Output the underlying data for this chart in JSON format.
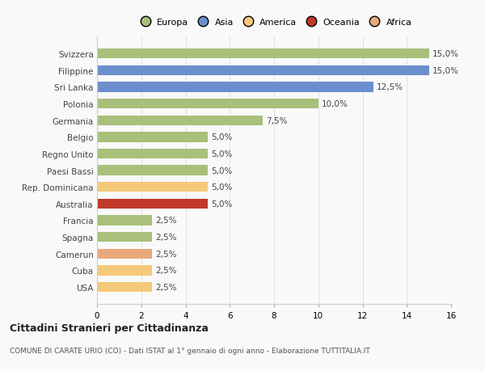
{
  "categories": [
    "USA",
    "Cuba",
    "Camerun",
    "Spagna",
    "Francia",
    "Australia",
    "Rep. Dominicana",
    "Paesi Bassi",
    "Regno Unito",
    "Belgio",
    "Germania",
    "Polonia",
    "Sri Lanka",
    "Filippine",
    "Svizzera"
  ],
  "values": [
    2.5,
    2.5,
    2.5,
    2.5,
    2.5,
    5.0,
    5.0,
    5.0,
    5.0,
    5.0,
    7.5,
    10.0,
    12.5,
    15.0,
    15.0
  ],
  "colors": [
    "#f5c97a",
    "#f5c97a",
    "#e8a87c",
    "#a8c07a",
    "#a8c07a",
    "#c0392b",
    "#f5c97a",
    "#a8c07a",
    "#a8c07a",
    "#a8c07a",
    "#a8c07a",
    "#a8c07a",
    "#6b8fce",
    "#6b8fce",
    "#a8c07a"
  ],
  "legend_labels": [
    "Europa",
    "Asia",
    "America",
    "Oceania",
    "Africa"
  ],
  "legend_colors": [
    "#a8c07a",
    "#6b8fce",
    "#f5c97a",
    "#c0392b",
    "#e8a87c"
  ],
  "xlim": [
    0,
    16
  ],
  "xticks": [
    0,
    2,
    4,
    6,
    8,
    10,
    12,
    14,
    16
  ],
  "title": "Cittadini Stranieri per Cittadinanza",
  "subtitle": "COMUNE DI CARATE URIO (CO) - Dati ISTAT al 1° gennaio di ogni anno - Elaborazione TUTTITALIA.IT",
  "background_color": "#f9f9f9",
  "grid_color": "#e0e0e0",
  "label_fmt": [
    "2,5%",
    "2,5%",
    "2,5%",
    "2,5%",
    "2,5%",
    "5,0%",
    "5,0%",
    "5,0%",
    "5,0%",
    "5,0%",
    "7,5%",
    "10,0%",
    "12,5%",
    "15,0%",
    "15,0%"
  ]
}
